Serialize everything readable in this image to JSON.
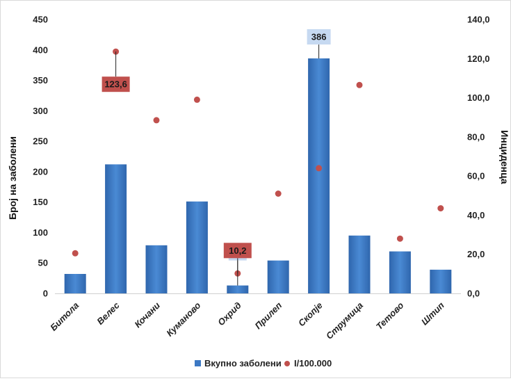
{
  "chart_data": {
    "type": "bar",
    "categories": [
      "Битола",
      "Велес",
      "Кочани",
      "Куманово",
      "Охрид",
      "Прилеп",
      "Скопје",
      "Струмица",
      "Тетово",
      "Штип"
    ],
    "series": [
      {
        "name": "Вкупно заболени",
        "type": "bar",
        "axis": "left",
        "color": "#3c78c3",
        "values": [
          32,
          212,
          79,
          151,
          13,
          54,
          386,
          95,
          69,
          39
        ]
      },
      {
        "name": "I/100.000",
        "type": "scatter",
        "axis": "right",
        "color": "#c0504d",
        "values": [
          20.5,
          123.6,
          88.5,
          99.0,
          10.2,
          51.0,
          64.0,
          106.5,
          28.0,
          43.5
        ]
      }
    ],
    "ylabel": "Број на заболени",
    "y2label": "Инциденца",
    "ylim": [
      0,
      450
    ],
    "y2lim": [
      0,
      140
    ],
    "yticks": [
      "0",
      "50",
      "100",
      "150",
      "200",
      "250",
      "300",
      "350",
      "400",
      "450"
    ],
    "y2ticks": [
      "0,0",
      "20,0",
      "40,0",
      "60,0",
      "80,0",
      "100,0",
      "120,0",
      "140,0"
    ],
    "annotations": [
      {
        "category": "Велес",
        "series": "I/100.000",
        "text": "123,6",
        "style": "red"
      },
      {
        "category": "Охрид",
        "series": "Вкупно заболени",
        "text": "13",
        "style": "blue"
      },
      {
        "category": "Охрид",
        "series": "I/100.000",
        "text": "10,2",
        "style": "red"
      },
      {
        "category": "Скопје",
        "series": "Вкупно заболени",
        "text": "386",
        "style": "blue"
      }
    ],
    "grid": false,
    "legend": "bottom"
  }
}
